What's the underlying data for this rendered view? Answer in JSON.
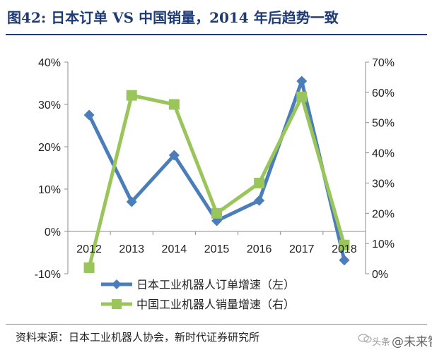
{
  "header": {
    "title": "图42:  日本订单 VS 中国销量，2014 年后趋势一致"
  },
  "footer": {
    "source": "资料来源：日本工业机器人协会，新时代证券研究所",
    "watermark_prefix": "头条",
    "watermark_brand": "@未来智库"
  },
  "colors": {
    "series_blue": "#4a7dba",
    "series_green": "#99c55a",
    "title": "#1f3b73",
    "axis": "#8c8c8c"
  },
  "chart_data": {
    "type": "line",
    "title": "日本订单 VS 中国销量，2014 年后趋势一致",
    "categories": [
      "2012",
      "2013",
      "2014",
      "2015",
      "2016",
      "2017",
      "2018"
    ],
    "series": [
      {
        "name": "日本工业机器人订单增速（左）",
        "axis": "left",
        "marker": "diamond",
        "values": [
          27.5,
          7.0,
          18.0,
          2.5,
          7.3,
          35.5,
          -6.8
        ]
      },
      {
        "name": "中国工业机器人销量增速（右）",
        "axis": "right",
        "marker": "square",
        "values": [
          2.0,
          59.0,
          56.0,
          20.0,
          30.0,
          58.5,
          9.5
        ]
      }
    ],
    "y_left": {
      "ylim": [
        -10,
        40
      ],
      "ticks": [
        "-10%",
        "0%",
        "10%",
        "20%",
        "30%",
        "40%"
      ]
    },
    "y_right": {
      "ylim": [
        0,
        70
      ],
      "ticks": [
        "0%",
        "10%",
        "20%",
        "30%",
        "40%",
        "50%",
        "60%",
        "70%"
      ]
    },
    "grid": false,
    "legend_position": "bottom-center"
  }
}
